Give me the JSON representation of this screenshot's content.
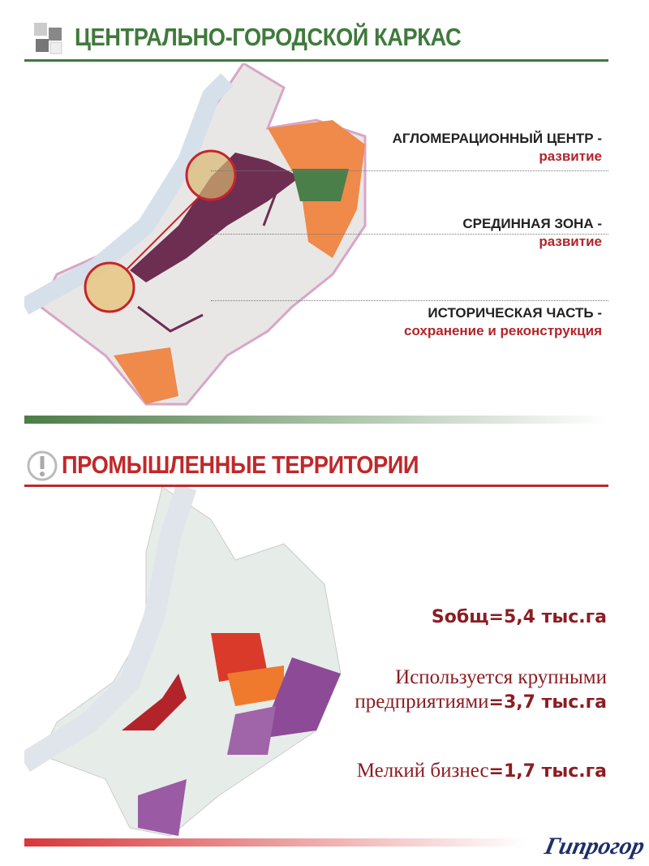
{
  "section1": {
    "title": "ЦЕНТРАЛЬНО-ГОРОДСКОЙ КАРКАС",
    "icon": "puzzle-icon",
    "color": "#3f7a3c",
    "labels": [
      {
        "title": "АГЛОМЕРАЦИОННЫЙ ЦЕНТР -",
        "sub": "развитие"
      },
      {
        "title": "СРЕДИННАЯ ЗОНА -",
        "sub": "развитие"
      },
      {
        "title": "ИСТОРИЧЕСКАЯ ЧАСТЬ -",
        "sub": "сохранение и реконструкция"
      }
    ]
  },
  "section2": {
    "title": "ПРОМЫШЛЕННЫЕ ТЕРРИТОРИИ",
    "icon": "exclamation-icon",
    "color": "#c0282a",
    "stats": [
      {
        "text": "",
        "bold": "Sобщ=5,4 тыс.га"
      },
      {
        "text": "Используется крупными",
        "text2": "предприятиями",
        "bold": "=3,7 тыс.га"
      },
      {
        "text": "Мелкий бизнес",
        "bold": "=1,7 тыс.га"
      }
    ]
  },
  "logo": "Гипрогор"
}
